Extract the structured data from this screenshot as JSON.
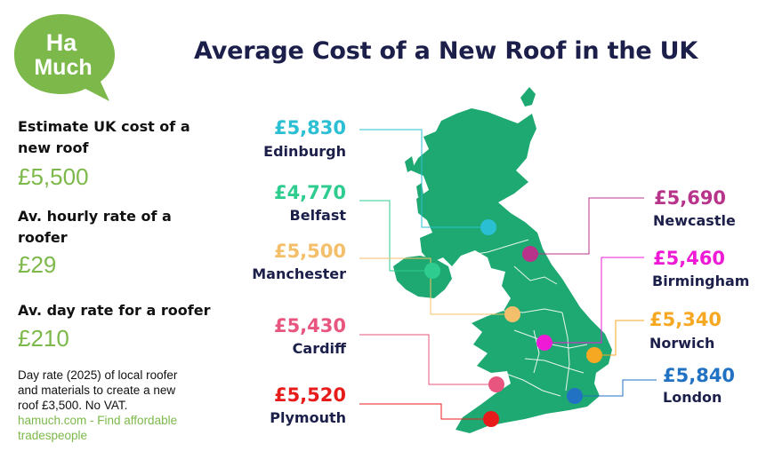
{
  "logo": {
    "line1": "Ha",
    "line2": "Much"
  },
  "title": "Average Cost of a New Roof in the UK",
  "stats": {
    "cost_label_1": "Estimate UK cost of a",
    "cost_label_2": "new roof",
    "cost_value": "£5,500",
    "hourly_label_1": "Av. hourly rate of a",
    "hourly_label_2": "roofer",
    "hourly_value": "£29",
    "day_label": "Av. day rate for a roofer",
    "day_value": "£210"
  },
  "note": {
    "line1": "Day rate (2025) of local roofer",
    "line2": "and materials to create a new",
    "line3": "roof £3,500. No VAT.",
    "link1": "hamuch.com - Find affordable",
    "link2": "tradespeople"
  },
  "colors": {
    "map_green": "#1fa972",
    "brand_green": "#7cb84a",
    "title_navy": "#1b1f4a"
  },
  "cities": [
    {
      "name": "Edinburgh",
      "price": "£5,830",
      "color": "#2bbfd3"
    },
    {
      "name": "Belfast",
      "price": "£4,770",
      "color": "#2ecc8f"
    },
    {
      "name": "Manchester",
      "price": "£5,500",
      "color": "#f4bf6a"
    },
    {
      "name": "Cardiff",
      "price": "£5,430",
      "color": "#e8557f"
    },
    {
      "name": "Plymouth",
      "price": "£5,520",
      "color": "#e81b1b"
    },
    {
      "name": "Newcastle",
      "price": "£5,690",
      "color": "#b8348a"
    },
    {
      "name": "Birmingham",
      "price": "£5,460",
      "color": "#ee1ad6"
    },
    {
      "name": "Norwich",
      "price": "£5,340",
      "color": "#f7a823"
    },
    {
      "name": "London",
      "price": "£5,840",
      "color": "#2272c3"
    }
  ]
}
